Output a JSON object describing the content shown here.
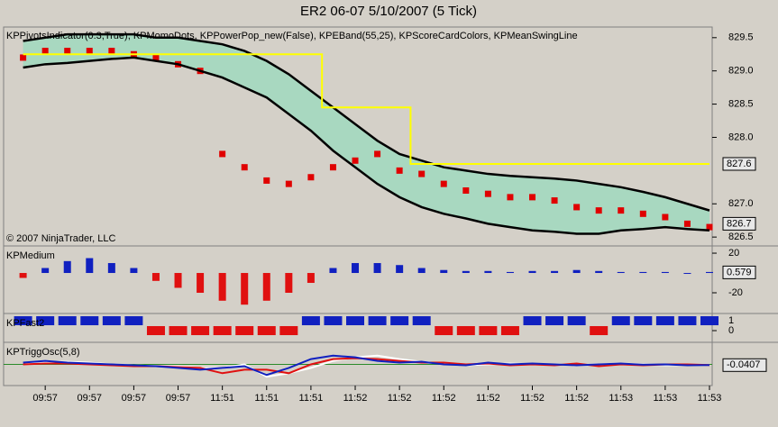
{
  "chart_data": [
    {
      "type": "line",
      "title": "ER2 06-07  5/10/2007  (5 Tick)",
      "label": "KPPivotsIndicator(0.3,True), KPMomoDots, KPPowerPop_new(False), KPEBand(55,25), KPScoreCardColors, KPMeanSwingLine",
      "annotation": "© 2007 NinjaTrader, LLC",
      "categories": [
        null,
        "09:57",
        null,
        "09:57",
        null,
        "09:57",
        null,
        "09:57",
        null,
        "11:51",
        null,
        "11:51",
        null,
        "11:51",
        null,
        "11:52",
        null,
        "11:52",
        null,
        "11:52",
        null,
        "11:52",
        null,
        "11:52",
        null,
        "11:52",
        null,
        "11:53",
        null,
        "11:53",
        null,
        "11:53"
      ],
      "ylim": [
        826.38,
        829.66
      ],
      "yticks": [
        {
          "value": 826.5,
          "label": "826.5"
        },
        {
          "value": 827,
          "label": "827.0"
        },
        {
          "value": 828,
          "label": "828.0"
        },
        {
          "value": 828.5,
          "label": "828.5"
        },
        {
          "value": 829,
          "label": "829.0"
        },
        {
          "value": 829.5,
          "label": "829.5"
        }
      ],
      "markers": [
        827.6,
        826.7
      ],
      "band_color": "#a8d8c0",
      "series": [
        {
          "color": "#e00000",
          "style": "squares",
          "values": [
            829.2,
            829.3,
            829.3,
            829.3,
            829.3,
            829.25,
            829.2,
            829.1,
            829.0,
            827.75,
            827.55,
            827.35,
            827.3,
            827.4,
            827.55,
            827.65,
            827.75,
            827.5,
            827.45,
            827.3,
            827.2,
            827.15,
            827.1,
            827.1,
            827.05,
            826.95,
            826.9,
            826.9,
            826.85,
            826.8,
            826.7,
            826.65
          ]
        },
        {
          "color": "#000000",
          "style": "band",
          "values": [
            829.45,
            829.5,
            829.55,
            829.55,
            829.55,
            829.55,
            829.5,
            829.5,
            829.45,
            829.4,
            829.3,
            829.15,
            828.95,
            828.7,
            828.45,
            828.2,
            827.95,
            827.75,
            827.65,
            827.55,
            827.5,
            827.45,
            827.42,
            827.4,
            827.38,
            827.35,
            827.3,
            827.25,
            827.18,
            827.1,
            827.0,
            826.9
          ]
        },
        {
          "color": "#000000",
          "style": "band",
          "values": [
            829.05,
            829.1,
            829.12,
            829.15,
            829.18,
            829.2,
            829.15,
            829.1,
            829.0,
            828.9,
            828.75,
            828.6,
            828.35,
            828.1,
            827.8,
            827.55,
            827.3,
            827.1,
            826.95,
            826.85,
            826.78,
            826.7,
            826.65,
            826.6,
            826.58,
            826.55,
            826.55,
            826.6,
            826.62,
            826.65,
            826.62,
            826.6
          ]
        },
        {
          "color": "#ffff00",
          "style": "step",
          "values": [
            829.25,
            829.25,
            829.25,
            829.25,
            829.25,
            829.25,
            829.25,
            829.25,
            829.25,
            829.25,
            829.25,
            829.25,
            829.25,
            829.25,
            828.45,
            828.45,
            828.45,
            828.45,
            827.6,
            827.6,
            827.6,
            827.6,
            827.6,
            827.6,
            827.6,
            827.6,
            827.6,
            827.6,
            827.6,
            827.6,
            827.6,
            827.6
          ]
        }
      ]
    },
    {
      "type": "bar",
      "label": "KPMedium",
      "ylim": [
        -39.1,
        26.4
      ],
      "yticks": [
        20,
        -20
      ],
      "markers": [
        0.579
      ],
      "pos_color": "#1020c0",
      "neg_color": "#e01010",
      "values": [
        -5,
        5,
        12,
        15,
        10,
        5,
        -8,
        -15,
        -20,
        -28,
        -32,
        -28,
        -20,
        -10,
        5,
        10,
        10,
        8,
        5,
        3,
        2,
        2,
        1,
        2,
        2,
        3,
        2,
        1,
        1,
        1,
        0,
        1
      ]
    },
    {
      "type": "bar",
      "label": "KPFast2",
      "ylim": [
        -1.0,
        1.64
      ],
      "yticks": [
        1,
        0
      ],
      "pos_color": "#1020c0",
      "neg_color": "#e01010",
      "values": [
        1,
        1,
        1,
        1,
        1,
        1,
        0,
        0,
        0,
        0,
        0,
        0,
        0,
        1,
        1,
        1,
        1,
        1,
        1,
        0,
        0,
        0,
        0,
        1,
        1,
        1,
        0,
        1,
        1,
        1,
        1,
        1
      ]
    },
    {
      "type": "line",
      "label": "KPTriggOsc(5,8)",
      "ylim": [
        -1.2,
        1.2
      ],
      "markers": [
        -0.0407
      ],
      "series": [
        {
          "color": "#ffffff",
          "values": [
            0.05,
            0.15,
            0.15,
            0.1,
            0.0,
            -0.05,
            -0.1,
            -0.1,
            -0.2,
            -0.2,
            0.0,
            -0.7,
            -0.5,
            -0.2,
            0.2,
            0.4,
            0.5,
            0.3,
            0.15,
            0.05,
            -0.05,
            0.0,
            0.05,
            0.0,
            0.0,
            -0.05,
            0.0,
            0.05,
            0.0,
            -0.05,
            -0.04,
            -0.04
          ]
        },
        {
          "color": "#e01010",
          "values": [
            0.0,
            0.05,
            0.05,
            0.0,
            -0.05,
            -0.1,
            -0.1,
            -0.15,
            -0.2,
            -0.5,
            -0.3,
            -0.3,
            -0.5,
            0.0,
            0.3,
            0.35,
            0.3,
            0.2,
            0.1,
            0.1,
            0.0,
            0.05,
            -0.05,
            0.0,
            -0.05,
            0.05,
            -0.1,
            0.0,
            -0.05,
            0.0,
            0.0,
            -0.04
          ]
        },
        {
          "color": "#1020c0",
          "values": [
            0.1,
            0.2,
            0.1,
            0.05,
            0.0,
            -0.05,
            -0.1,
            -0.2,
            -0.3,
            -0.2,
            -0.1,
            -0.6,
            -0.2,
            0.3,
            0.5,
            0.4,
            0.2,
            0.1,
            0.15,
            0.0,
            -0.05,
            0.1,
            0.0,
            0.05,
            0.0,
            -0.05,
            0.0,
            0.05,
            -0.02,
            0.0,
            -0.05,
            -0.04
          ]
        }
      ]
    }
  ]
}
